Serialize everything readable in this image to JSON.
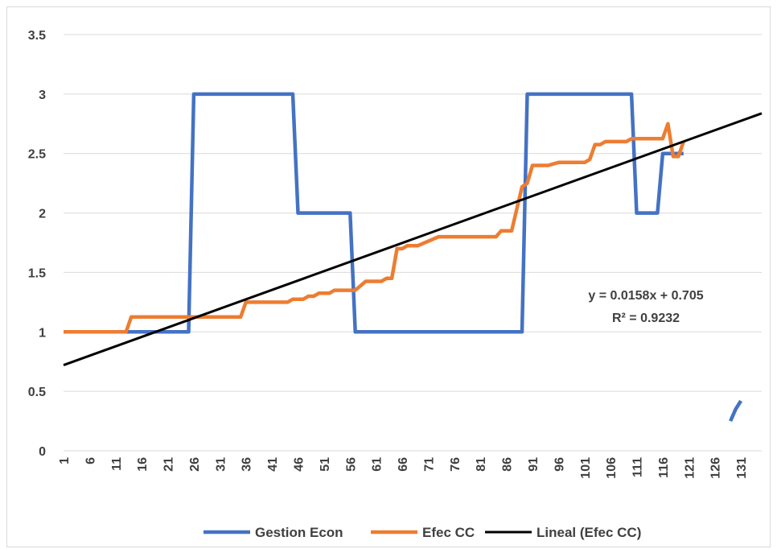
{
  "chart_data": {
    "type": "line",
    "title": "",
    "xlabel": "",
    "ylabel": "",
    "ylim": [
      0,
      3.5
    ],
    "yticks": [
      "0",
      "0.5",
      "1",
      "1.5",
      "2",
      "2.5",
      "3",
      "3.5"
    ],
    "xlim": [
      1,
      135
    ],
    "xticks": [
      "1",
      "6",
      "11",
      "16",
      "21",
      "26",
      "31",
      "36",
      "41",
      "46",
      "51",
      "56",
      "61",
      "66",
      "71",
      "76",
      "81",
      "86",
      "91",
      "96",
      "101",
      "106",
      "111",
      "116",
      "121",
      "126",
      "131"
    ],
    "grid": "horizontal",
    "legend_position": "bottom",
    "series": [
      {
        "name": "Gestion Econ",
        "color": "#4472C4",
        "segments": [
          [
            [
              1,
              1
            ],
            [
              25,
              1
            ],
            [
              26,
              3
            ],
            [
              45,
              3
            ],
            [
              46,
              2
            ],
            [
              56,
              2
            ],
            [
              57,
              1
            ],
            [
              89,
              1
            ],
            [
              90,
              3
            ],
            [
              110,
              3
            ],
            [
              111,
              2
            ],
            [
              115,
              2
            ],
            [
              116,
              2.5
            ],
            [
              120,
              2.5
            ]
          ],
          [
            [
              129,
              0.25
            ],
            [
              130,
              0.35
            ],
            [
              131,
              0.42
            ]
          ]
        ]
      },
      {
        "name": "Efec CC",
        "color": "#ED7D31",
        "points": [
          [
            1,
            1
          ],
          [
            13,
            1
          ],
          [
            14,
            1.125
          ],
          [
            35,
            1.125
          ],
          [
            36,
            1.25
          ],
          [
            44,
            1.25
          ],
          [
            45,
            1.275
          ],
          [
            47,
            1.275
          ],
          [
            48,
            1.3
          ],
          [
            49,
            1.3
          ],
          [
            50,
            1.325
          ],
          [
            52,
            1.325
          ],
          [
            53,
            1.35
          ],
          [
            57,
            1.35
          ],
          [
            59,
            1.425
          ],
          [
            62,
            1.425
          ],
          [
            63,
            1.45
          ],
          [
            64,
            1.45
          ],
          [
            65,
            1.7
          ],
          [
            66,
            1.7
          ],
          [
            67,
            1.725
          ],
          [
            69,
            1.725
          ],
          [
            73,
            1.8
          ],
          [
            84,
            1.8
          ],
          [
            85,
            1.85
          ],
          [
            87,
            1.85
          ],
          [
            89,
            2.22
          ],
          [
            90,
            2.25
          ],
          [
            91,
            2.4
          ],
          [
            94,
            2.4
          ],
          [
            96,
            2.425
          ],
          [
            101,
            2.425
          ],
          [
            102,
            2.45
          ],
          [
            103,
            2.575
          ],
          [
            104,
            2.575
          ],
          [
            105,
            2.6
          ],
          [
            109,
            2.6
          ],
          [
            110,
            2.625
          ],
          [
            116,
            2.625
          ],
          [
            117,
            2.75
          ],
          [
            118,
            2.475
          ],
          [
            119,
            2.475
          ],
          [
            120,
            2.6
          ]
        ]
      },
      {
        "name": "Lineal (Efec CC)",
        "color": "#000000",
        "type": "trendline",
        "slope": 0.0158,
        "intercept": 0.705,
        "x_range": [
          1,
          135
        ]
      }
    ],
    "annotations": [
      "y = 0.0158x + 0.705",
      "R² = 0.9232"
    ]
  }
}
